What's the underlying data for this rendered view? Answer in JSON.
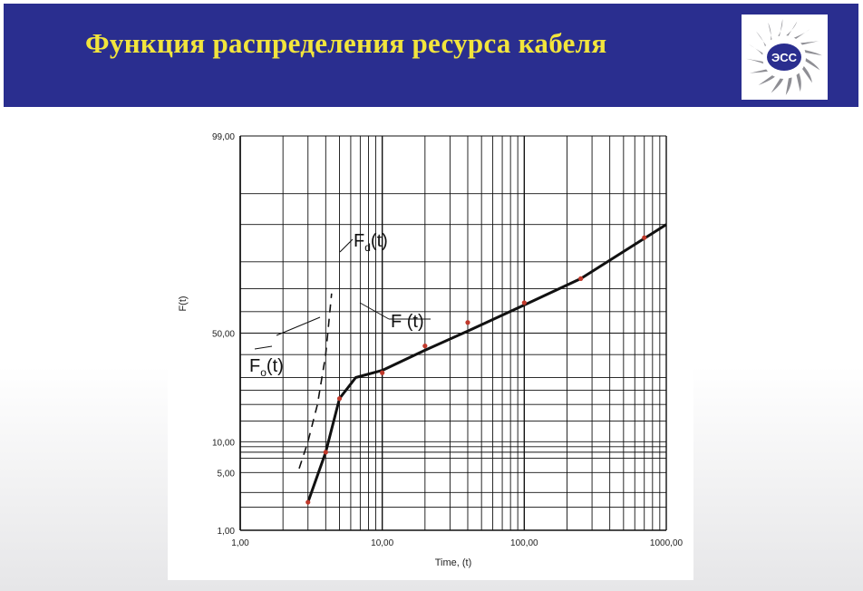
{
  "slide": {
    "title": "Функция распределения ресурса кабеля"
  },
  "logo": {
    "text": "ЭСС",
    "accent_color": "#2a2e8f"
  },
  "colors": {
    "header_bg": "#2a2e8f",
    "title": "#f2e53c",
    "data_points": "#c0392b",
    "grid": "#111111"
  },
  "chart_data": {
    "type": "line",
    "x_scale": "log",
    "y_scale": "probability",
    "xlim": [
      1,
      1000
    ],
    "ylim": [
      1,
      99
    ],
    "xlabel": "Time, (t)",
    "ylabel": "F(t)",
    "x_ticks": [
      "1,00",
      "10,00",
      "100,00",
      "1000,00"
    ],
    "y_ticks": [
      "1,00",
      "5,00",
      "10,00",
      "50,00",
      "99,00"
    ],
    "grid": true,
    "series": [
      {
        "style": "solid",
        "x": [
          3,
          4,
          5,
          6.5,
          10,
          20,
          40,
          100,
          250,
          1000
        ],
        "y": [
          2.3,
          8,
          22,
          30,
          33,
          42,
          51,
          63,
          74,
          90
        ]
      },
      {
        "style": "dashed",
        "x": [
          2.6,
          3,
          3.5,
          4,
          4.4
        ],
        "y": [
          5.5,
          10,
          20,
          40,
          68
        ]
      }
    ],
    "points": {
      "x": [
        3,
        4,
        5,
        10,
        20,
        40,
        100,
        250,
        700
      ],
      "y": [
        2.3,
        8,
        22,
        32,
        44,
        55,
        64,
        74,
        87
      ]
    },
    "annotations": [
      {
        "main": "F",
        "sub": "d",
        "rest": "(t)"
      },
      {
        "main": "F",
        "sub": "",
        "rest": " (t)"
      },
      {
        "main": "F",
        "sub": "o",
        "rest": "(t)"
      }
    ]
  }
}
